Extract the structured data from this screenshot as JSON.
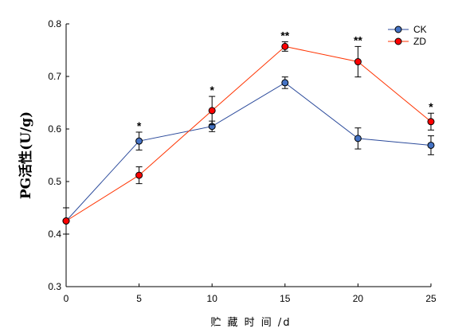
{
  "chart_data": {
    "type": "line",
    "title": "",
    "xlabel": "贮 藏 时 间 /d",
    "ylabel": "PG活性(U/g)",
    "x": [
      0,
      5,
      10,
      15,
      20,
      25
    ],
    "xticks": [
      "0",
      "5",
      "10",
      "15",
      "20",
      "25"
    ],
    "xlim": [
      0,
      25
    ],
    "yticks": [
      "0.3",
      "0.4",
      "0.5",
      "0.6",
      "0.7",
      "0.8"
    ],
    "ylim": [
      0.3,
      0.8
    ],
    "grid": false,
    "legend_position": "top-right",
    "series": [
      {
        "name": "CK",
        "color": "#4472c4",
        "line_color": "#2b4a9b",
        "values": [
          0.425,
          0.577,
          0.605,
          0.688,
          0.582,
          0.569
        ],
        "errors": [
          0.025,
          0.017,
          0.01,
          0.011,
          0.02,
          0.018
        ]
      },
      {
        "name": "ZD",
        "color": "#ff0000",
        "line_color": "#ff3300",
        "values": [
          0.425,
          0.512,
          0.635,
          0.757,
          0.728,
          0.614
        ],
        "errors": [
          0.025,
          0.016,
          0.027,
          0.009,
          0.029,
          0.016
        ]
      }
    ],
    "annotations": [
      "",
      "*",
      "*",
      "**",
      "**",
      "*"
    ]
  }
}
